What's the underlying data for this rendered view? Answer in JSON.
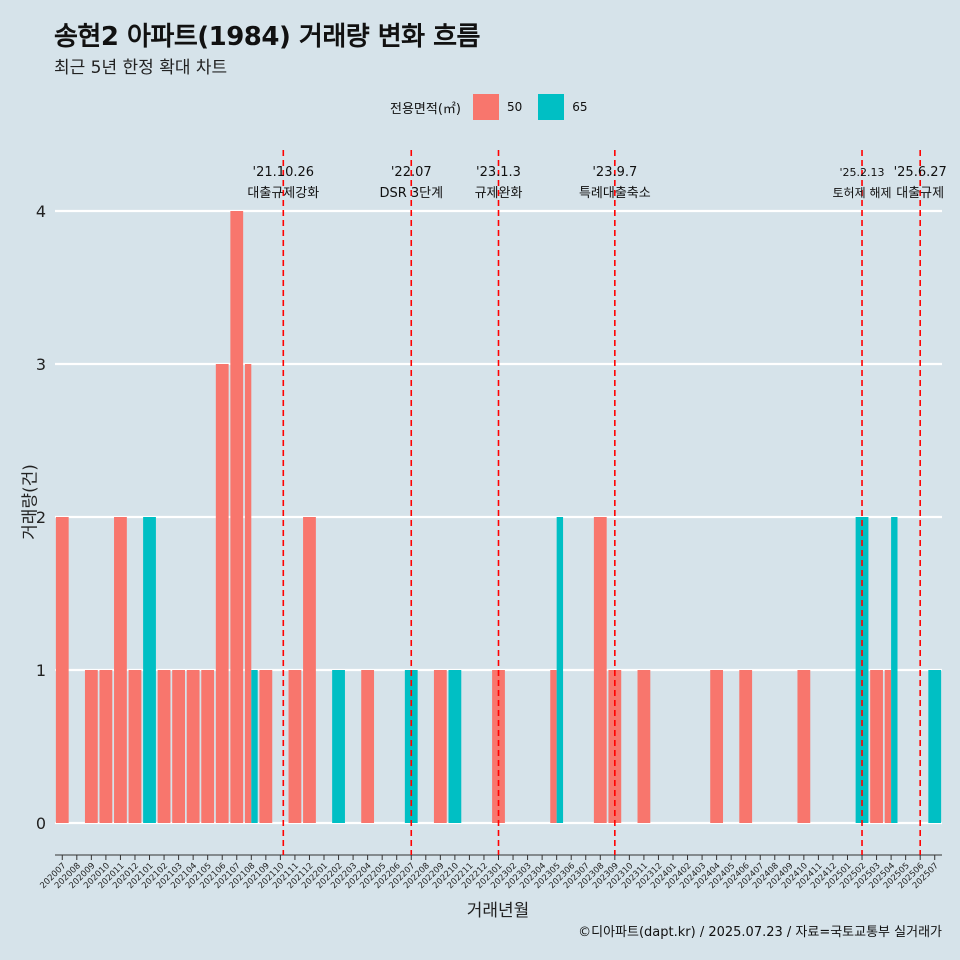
{
  "title": "송현2 아파트(1984) 거래량 변화 흐름",
  "subtitle": "최근 5년 한정 확대 차트",
  "caption": "©디아파트(dapt.kr) / 2025.07.23 / 자료=국토교통부 실거래가",
  "colors": {
    "background": "#d6e3ea",
    "series_50": "#f8766d",
    "series_65": "#00bfc4",
    "event_line": "#ff0000"
  },
  "chart_data": {
    "type": "bar",
    "title": "송현2 아파트(1984) 거래량 변화 흐름",
    "subtitle": "최근 5년 한정 확대 차트",
    "xlabel": "거래년월",
    "ylabel": "거래량(건)",
    "ylim": [
      0,
      4
    ],
    "y_ticks": [
      0,
      1,
      2,
      3,
      4
    ],
    "grid": "horizontal",
    "legend": {
      "title": "전용면적(㎡)",
      "position": "top-center",
      "entries": [
        "50",
        "65"
      ]
    },
    "categories": [
      "202007",
      "202008",
      "202009",
      "202010",
      "202011",
      "202012",
      "202101",
      "202102",
      "202103",
      "202104",
      "202105",
      "202106",
      "202107",
      "202108",
      "202109",
      "202110",
      "202111",
      "202112",
      "202201",
      "202202",
      "202203",
      "202204",
      "202205",
      "202206",
      "202207",
      "202208",
      "202209",
      "202210",
      "202211",
      "202212",
      "202301",
      "202302",
      "202303",
      "202304",
      "202305",
      "202306",
      "202307",
      "202308",
      "202309",
      "202310",
      "202311",
      "202312",
      "202401",
      "202402",
      "202403",
      "202404",
      "202405",
      "202406",
      "202407",
      "202408",
      "202409",
      "202410",
      "202411",
      "202412",
      "202501",
      "202502",
      "202503",
      "202504",
      "202505",
      "202506",
      "202507"
    ],
    "series": [
      {
        "name": "50",
        "color": "#f8766d",
        "values": [
          2,
          0,
          1,
          1,
          2,
          1,
          0,
          1,
          1,
          1,
          1,
          3,
          4,
          3,
          1,
          0,
          1,
          2,
          0,
          0,
          0,
          1,
          0,
          0,
          0,
          0,
          1,
          0,
          0,
          0,
          1,
          0,
          0,
          0,
          1,
          0,
          0,
          2,
          1,
          0,
          1,
          0,
          0,
          0,
          0,
          1,
          0,
          1,
          0,
          0,
          0,
          1,
          0,
          0,
          0,
          0,
          1,
          1,
          0,
          0,
          0
        ]
      },
      {
        "name": "65",
        "color": "#00bfc4",
        "values": [
          0,
          0,
          0,
          0,
          0,
          0,
          2,
          0,
          0,
          0,
          0,
          0,
          0,
          1,
          0,
          0,
          0,
          0,
          0,
          1,
          0,
          0,
          0,
          0,
          1,
          0,
          0,
          1,
          0,
          0,
          0,
          0,
          0,
          0,
          2,
          0,
          0,
          0,
          0,
          0,
          0,
          0,
          0,
          0,
          0,
          0,
          0,
          0,
          0,
          0,
          0,
          0,
          0,
          0,
          0,
          2,
          0,
          2,
          0,
          0,
          1
        ]
      }
    ],
    "events": [
      {
        "at": "202110",
        "date": "'21.10.26",
        "label": "대출규제강화"
      },
      {
        "at": "202207",
        "date": "'22.07",
        "label": "DSR 3단계"
      },
      {
        "at": "202301",
        "date": "'23.1.3",
        "label": "규제완화"
      },
      {
        "at": "202309",
        "date": "'23.9.7",
        "label": "특례대출축소"
      },
      {
        "at": "202502",
        "date": "'25.2.13",
        "label": "토허제 해제"
      },
      {
        "at": "202506",
        "date": "'25.6.27",
        "label": "대출규제"
      }
    ]
  }
}
